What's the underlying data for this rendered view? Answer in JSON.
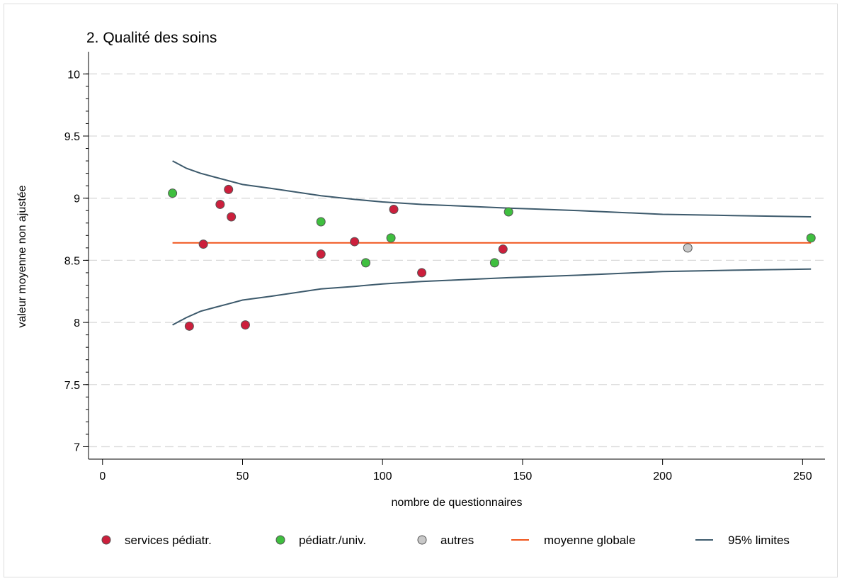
{
  "chart_data": {
    "type": "scatter",
    "title": "2. Qualité des soins",
    "xlabel": "nombre de questionnaires",
    "ylabel": "valeur moyenne non ajustée",
    "xlim": [
      -5,
      258
    ],
    "ylim": [
      6.9,
      10.15
    ],
    "x_ticks": [
      0,
      50,
      100,
      150,
      200,
      250
    ],
    "x_tick_labels": [
      "0",
      "50",
      "100",
      "150",
      "200",
      "250"
    ],
    "y_ticks": [
      7,
      7.5,
      8,
      8.5,
      9,
      9.5,
      10
    ],
    "y_tick_labels": [
      "7",
      "7.5",
      "8",
      "8.5",
      "9",
      "9.5",
      "10"
    ],
    "y_minor_step": 0.1,
    "grid": true,
    "legend_position": "bottom",
    "colors": {
      "services": "#cc1f3c",
      "pediatr_univ": "#3fbf3f",
      "autres": "#c8c8c8",
      "moyenne": "#f0541a",
      "limites": "#3d5a6c",
      "grid": "#d9d9d9"
    },
    "series": [
      {
        "name": "services pédiatr.",
        "kind": "points",
        "color_key": "services",
        "points": [
          [
            31,
            7.97
          ],
          [
            36,
            8.63
          ],
          [
            42,
            8.95
          ],
          [
            45,
            9.07
          ],
          [
            46,
            8.85
          ],
          [
            51,
            7.98
          ],
          [
            78,
            8.55
          ],
          [
            90,
            8.65
          ],
          [
            104,
            8.91
          ],
          [
            114,
            8.4
          ],
          [
            143,
            8.59
          ]
        ]
      },
      {
        "name": "pédiatr./univ.",
        "kind": "points",
        "color_key": "pediatr_univ",
        "points": [
          [
            25,
            9.04
          ],
          [
            78,
            8.81
          ],
          [
            94,
            8.48
          ],
          [
            103,
            8.68
          ],
          [
            140,
            8.48
          ],
          [
            145,
            8.89
          ],
          [
            253,
            8.68
          ]
        ]
      },
      {
        "name": "autres",
        "kind": "points",
        "color_key": "autres",
        "points": [
          [
            209,
            8.6
          ]
        ]
      },
      {
        "name": "moyenne globale",
        "kind": "line",
        "color_key": "moyenne",
        "points": [
          [
            25,
            8.64
          ],
          [
            253,
            8.64
          ]
        ]
      },
      {
        "name": "95% limites",
        "kind": "line",
        "color_key": "limites",
        "points": [
          [
            25,
            9.3
          ],
          [
            30,
            9.24
          ],
          [
            35,
            9.2
          ],
          [
            40,
            9.17
          ],
          [
            45,
            9.14
          ],
          [
            50,
            9.11
          ],
          [
            60,
            9.08
          ],
          [
            78,
            9.02
          ],
          [
            90,
            8.99
          ],
          [
            100,
            8.97
          ],
          [
            114,
            8.95
          ],
          [
            125,
            8.94
          ],
          [
            145,
            8.92
          ],
          [
            170,
            8.9
          ],
          [
            200,
            8.87
          ],
          [
            225,
            8.86
          ],
          [
            253,
            8.85
          ]
        ]
      },
      {
        "name": "",
        "kind": "line",
        "color_key": "limites",
        "points": [
          [
            25,
            7.98
          ],
          [
            30,
            8.04
          ],
          [
            35,
            8.09
          ],
          [
            40,
            8.12
          ],
          [
            45,
            8.15
          ],
          [
            50,
            8.18
          ],
          [
            60,
            8.21
          ],
          [
            78,
            8.27
          ],
          [
            90,
            8.29
          ],
          [
            100,
            8.31
          ],
          [
            114,
            8.33
          ],
          [
            125,
            8.34
          ],
          [
            145,
            8.36
          ],
          [
            170,
            8.38
          ],
          [
            200,
            8.41
          ],
          [
            225,
            8.42
          ],
          [
            253,
            8.43
          ]
        ]
      }
    ],
    "legend": [
      {
        "label": "services pédiatr.",
        "marker": "circle",
        "color_key": "services"
      },
      {
        "label": "pédiatr./univ.",
        "marker": "circle",
        "color_key": "pediatr_univ"
      },
      {
        "label": "autres",
        "marker": "circle",
        "color_key": "autres"
      },
      {
        "label": "moyenne globale",
        "marker": "line",
        "color_key": "moyenne"
      },
      {
        "label": "95% limites",
        "marker": "line",
        "color_key": "limites"
      }
    ]
  }
}
